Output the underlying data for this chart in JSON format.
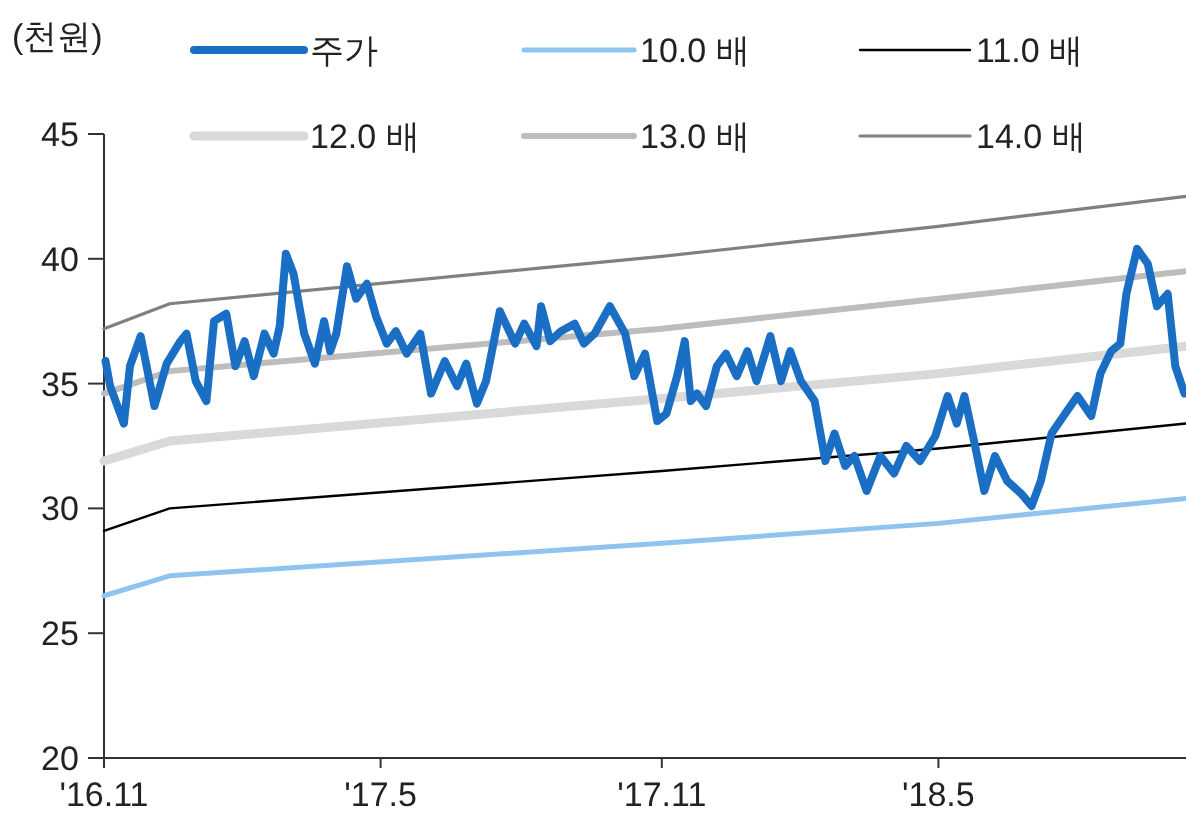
{
  "chart_data": {
    "type": "line",
    "ylabel": "(천원)",
    "legend": "top",
    "xlim": [
      "2016-11-01",
      "2018-10-10"
    ],
    "xticks": [
      {
        "value": "2016-11-01",
        "label": "'16.11"
      },
      {
        "value": "2017-05-01",
        "label": "'17.5"
      },
      {
        "value": "2017-11-01",
        "label": "'17.11"
      },
      {
        "value": "2018-05-01",
        "label": "'18.5"
      }
    ],
    "ylim": [
      20,
      45
    ],
    "yticks": [
      20,
      25,
      30,
      35,
      40,
      45
    ],
    "series": [
      {
        "name": "주가",
        "color": "#1a6fc4",
        "x": [
          "2016-11-02",
          "2016-11-05",
          "2016-11-14",
          "2016-11-18",
          "2016-11-25",
          "2016-12-04",
          "2016-12-12",
          "2016-12-21",
          "2016-12-25",
          "2016-12-31",
          "2017-01-07",
          "2017-01-12",
          "2017-01-20",
          "2017-01-26",
          "2017-02-01",
          "2017-02-07",
          "2017-02-14",
          "2017-02-20",
          "2017-02-24",
          "2017-02-28",
          "2017-03-05",
          "2017-03-12",
          "2017-03-19",
          "2017-03-25",
          "2017-03-29",
          "2017-04-02",
          "2017-04-09",
          "2017-04-15",
          "2017-04-22",
          "2017-04-28",
          "2017-05-05",
          "2017-05-11",
          "2017-05-18",
          "2017-05-27",
          "2017-06-03",
          "2017-06-12",
          "2017-06-20",
          "2017-06-26",
          "2017-07-03",
          "2017-07-09",
          "2017-07-18",
          "2017-07-28",
          "2017-08-03",
          "2017-08-11",
          "2017-08-14",
          "2017-08-20",
          "2017-08-27",
          "2017-09-05",
          "2017-09-11",
          "2017-09-18",
          "2017-09-28",
          "2017-10-08",
          "2017-10-14",
          "2017-10-21",
          "2017-10-29",
          "2017-11-04",
          "2017-11-11",
          "2017-11-16",
          "2017-11-20",
          "2017-11-24",
          "2017-11-30",
          "2017-12-07",
          "2017-12-13",
          "2017-12-20",
          "2017-12-27",
          "2018-01-02",
          "2018-01-11",
          "2018-01-18",
          "2018-01-24",
          "2018-01-31",
          "2018-02-09",
          "2018-02-16",
          "2018-02-22",
          "2018-03-01",
          "2018-03-07",
          "2018-03-15",
          "2018-03-24",
          "2018-04-02",
          "2018-04-10",
          "2018-04-19",
          "2018-04-29",
          "2018-05-07",
          "2018-05-13",
          "2018-05-18",
          "2018-05-25",
          "2018-05-31",
          "2018-06-07",
          "2018-06-15",
          "2018-06-24",
          "2018-07-01",
          "2018-07-07",
          "2018-07-14",
          "2018-07-23",
          "2018-07-31",
          "2018-08-09",
          "2018-08-15",
          "2018-08-22",
          "2018-08-28",
          "2018-09-01",
          "2018-09-08",
          "2018-09-15",
          "2018-09-21",
          "2018-09-28",
          "2018-10-03",
          "2018-10-09"
        ],
        "values": [
          35.9,
          34.9,
          33.4,
          35.7,
          36.9,
          34.1,
          35.8,
          36.7,
          37.0,
          35.1,
          34.3,
          37.5,
          37.8,
          35.7,
          36.7,
          35.3,
          37.0,
          36.2,
          37.3,
          40.2,
          39.4,
          37.0,
          35.8,
          37.5,
          36.3,
          37.0,
          39.7,
          38.4,
          39.0,
          37.7,
          36.6,
          37.1,
          36.2,
          37.0,
          34.6,
          35.9,
          34.9,
          35.8,
          34.2,
          35.1,
          37.9,
          36.6,
          37.4,
          36.5,
          38.1,
          36.7,
          37.1,
          37.4,
          36.6,
          37.0,
          38.1,
          37.0,
          35.3,
          36.2,
          33.5,
          33.8,
          35.3,
          36.7,
          34.3,
          34.6,
          34.1,
          35.7,
          36.2,
          35.3,
          36.3,
          35.1,
          36.9,
          35.1,
          36.3,
          35.1,
          34.3,
          31.9,
          33.0,
          31.7,
          32.1,
          30.7,
          32.1,
          31.4,
          32.5,
          31.9,
          32.9,
          34.5,
          33.4,
          34.5,
          32.5,
          30.7,
          32.1,
          31.1,
          30.6,
          30.1,
          31.1,
          33.0,
          33.8,
          34.5,
          33.7,
          35.4,
          36.3,
          36.6,
          38.6,
          40.4,
          39.8,
          38.1,
          38.6,
          35.7,
          34.6
        ]
      },
      {
        "name": "10.0 배",
        "color": "#90c4f0",
        "x": [
          "2016-11-01",
          "2016-12-14",
          "2017-11-01",
          "2018-05-01",
          "2018-10-10"
        ],
        "values": [
          26.5,
          27.3,
          28.6,
          29.4,
          30.4
        ]
      },
      {
        "name": "11.0 배",
        "color": "#000000",
        "x": [
          "2016-11-01",
          "2016-12-14",
          "2017-11-01",
          "2018-05-01",
          "2018-10-10"
        ],
        "values": [
          29.1,
          30.0,
          31.5,
          32.4,
          33.4
        ]
      },
      {
        "name": "12.0 배",
        "color": "#d9d9d9",
        "x": [
          "2016-11-01",
          "2016-12-14",
          "2017-11-01",
          "2018-05-01",
          "2018-10-10"
        ],
        "values": [
          31.9,
          32.7,
          34.4,
          35.4,
          36.5
        ]
      },
      {
        "name": "13.0 배",
        "color": "#bdbdbd",
        "x": [
          "2016-11-01",
          "2016-12-14",
          "2017-11-01",
          "2018-05-01",
          "2018-10-10"
        ],
        "values": [
          34.6,
          35.5,
          37.2,
          38.4,
          39.5
        ]
      },
      {
        "name": "14.0 배",
        "color": "#808080",
        "x": [
          "2016-11-01",
          "2016-12-14",
          "2017-11-01",
          "2018-05-01",
          "2018-10-10"
        ],
        "values": [
          37.2,
          38.2,
          40.1,
          41.3,
          42.5
        ]
      }
    ]
  }
}
